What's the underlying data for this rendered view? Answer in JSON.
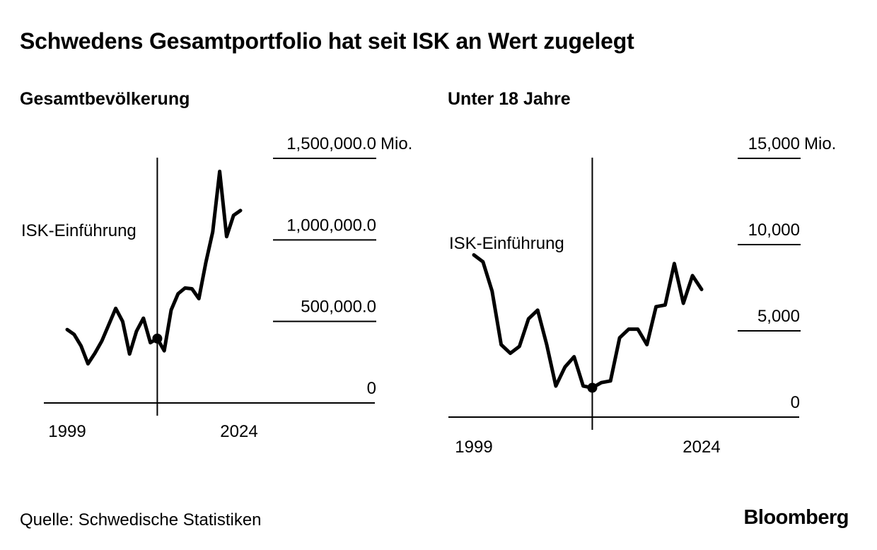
{
  "title": "Schwedens Gesamtportfolio hat seit ISK an Wert zugelegt",
  "source": "Quelle: Schwedische Statistiken",
  "brand": "Bloomberg",
  "chart_data": [
    {
      "type": "line",
      "title": "Gesamtbevölkerung",
      "unit_label": "Mio.",
      "x": [
        1999,
        2000,
        2001,
        2002,
        2003,
        2004,
        2005,
        2006,
        2007,
        2008,
        2009,
        2010,
        2011,
        2012,
        2013,
        2014,
        2015,
        2016,
        2017,
        2018,
        2019,
        2020,
        2021,
        2022,
        2023,
        2024
      ],
      "values": [
        450000,
        420000,
        350000,
        240000,
        305000,
        380000,
        480000,
        580000,
        500000,
        300000,
        440000,
        520000,
        370000,
        395000,
        320000,
        570000,
        670000,
        705000,
        700000,
        640000,
        860000,
        1050000,
        1420000,
        1020000,
        1150000,
        1180000
      ],
      "yticks": [
        0,
        500000,
        1000000,
        1500000
      ],
      "ytick_labels": [
        "0",
        "500,000.0",
        "1,000,000.0",
        "1,500,000.0"
      ],
      "ylim": [
        0,
        1500000
      ],
      "xtick_labels": [
        "1999",
        "2024"
      ],
      "marker": {
        "x": 2012,
        "value": 395000
      },
      "annotation": {
        "label": "ISK-Einführung",
        "x": 2012
      }
    },
    {
      "type": "line",
      "title": "Unter 18 Jahre",
      "unit_label": "Mio.",
      "x": [
        1999,
        2000,
        2001,
        2002,
        2003,
        2004,
        2005,
        2006,
        2007,
        2008,
        2009,
        2010,
        2011,
        2012,
        2013,
        2014,
        2015,
        2016,
        2017,
        2018,
        2019,
        2020,
        2021,
        2022,
        2023,
        2024
      ],
      "values": [
        9400,
        9000,
        7300,
        4200,
        3700,
        4100,
        5700,
        6200,
        4200,
        1800,
        2900,
        3500,
        1800,
        1700,
        2000,
        2100,
        4600,
        5100,
        5100,
        4200,
        6400,
        6500,
        8900,
        6600,
        8200,
        7400
      ],
      "yticks": [
        0,
        5000,
        10000,
        15000
      ],
      "ytick_labels": [
        "0",
        "5,000",
        "10,000",
        "15,000"
      ],
      "ylim": [
        0,
        15000
      ],
      "xtick_labels": [
        "1999",
        "2024"
      ],
      "marker": {
        "x": 2012,
        "value": 1700
      },
      "annotation": {
        "label": "ISK-Einführung",
        "x": 2012
      }
    }
  ]
}
